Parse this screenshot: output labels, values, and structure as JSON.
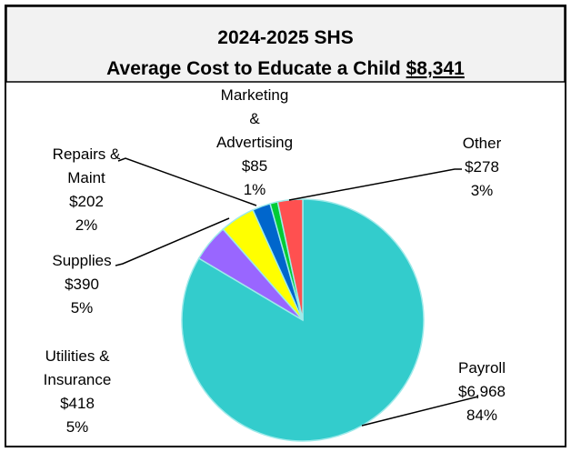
{
  "chart_data": {
    "type": "pie",
    "title": "2024-2025 SHS",
    "subtitle": "Average Cost to Educate a Child",
    "total": {
      "value": 8341,
      "label": "$8,341"
    },
    "categories": [
      "Payroll",
      "Utilities &\nInsurance",
      "Supplies",
      "Repairs &\nMaint",
      "Marketing\n&\nAdvertising",
      "Other"
    ],
    "values": [
      6968,
      418,
      390,
      202,
      85,
      278
    ],
    "value_labels": [
      "$6,968",
      "$418",
      "$390",
      "$202",
      "$85",
      "$278"
    ],
    "percent_labels": [
      "84%",
      "5%",
      "5%",
      "2%",
      "1%",
      "3%"
    ],
    "colors": [
      "#33CCCC",
      "#9966FF",
      "#FFFF00",
      "#0066CC",
      "#00CC33",
      "#FF5050"
    ]
  }
}
